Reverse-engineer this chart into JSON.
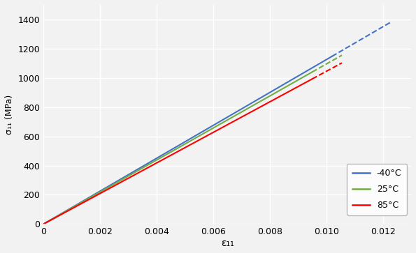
{
  "title": "",
  "xlabel": "ε₁₁",
  "ylabel": "σ₁₁ (MPa)",
  "background_color": "#f2f2f2",
  "plot_bg_color": "#f2f2f2",
  "grid_color": "#ffffff",
  "xlim": [
    0,
    0.013
  ],
  "ylim": [
    0,
    1500
  ],
  "xticks": [
    0,
    0.002,
    0.004,
    0.006,
    0.008,
    0.01,
    0.012
  ],
  "yticks": [
    0,
    200,
    400,
    600,
    800,
    1000,
    1200,
    1400
  ],
  "curves": [
    {
      "label": "-40°C",
      "color": "#4472c4",
      "E": 112500,
      "eps_solid": 0.0102,
      "eps_max": 0.01225,
      "sigma_failure": 1148
    },
    {
      "label": "25°C",
      "color": "#70ad47",
      "E": 109500,
      "eps_solid": 0.0095,
      "eps_max": 0.01055,
      "sigma_failure": 1040
    },
    {
      "label": "85°C",
      "color": "#ff0000",
      "E": 104500,
      "eps_solid": 0.0095,
      "eps_max": 0.01055,
      "sigma_failure": 998
    }
  ],
  "figsize": [
    5.95,
    3.63
  ],
  "dpi": 100
}
